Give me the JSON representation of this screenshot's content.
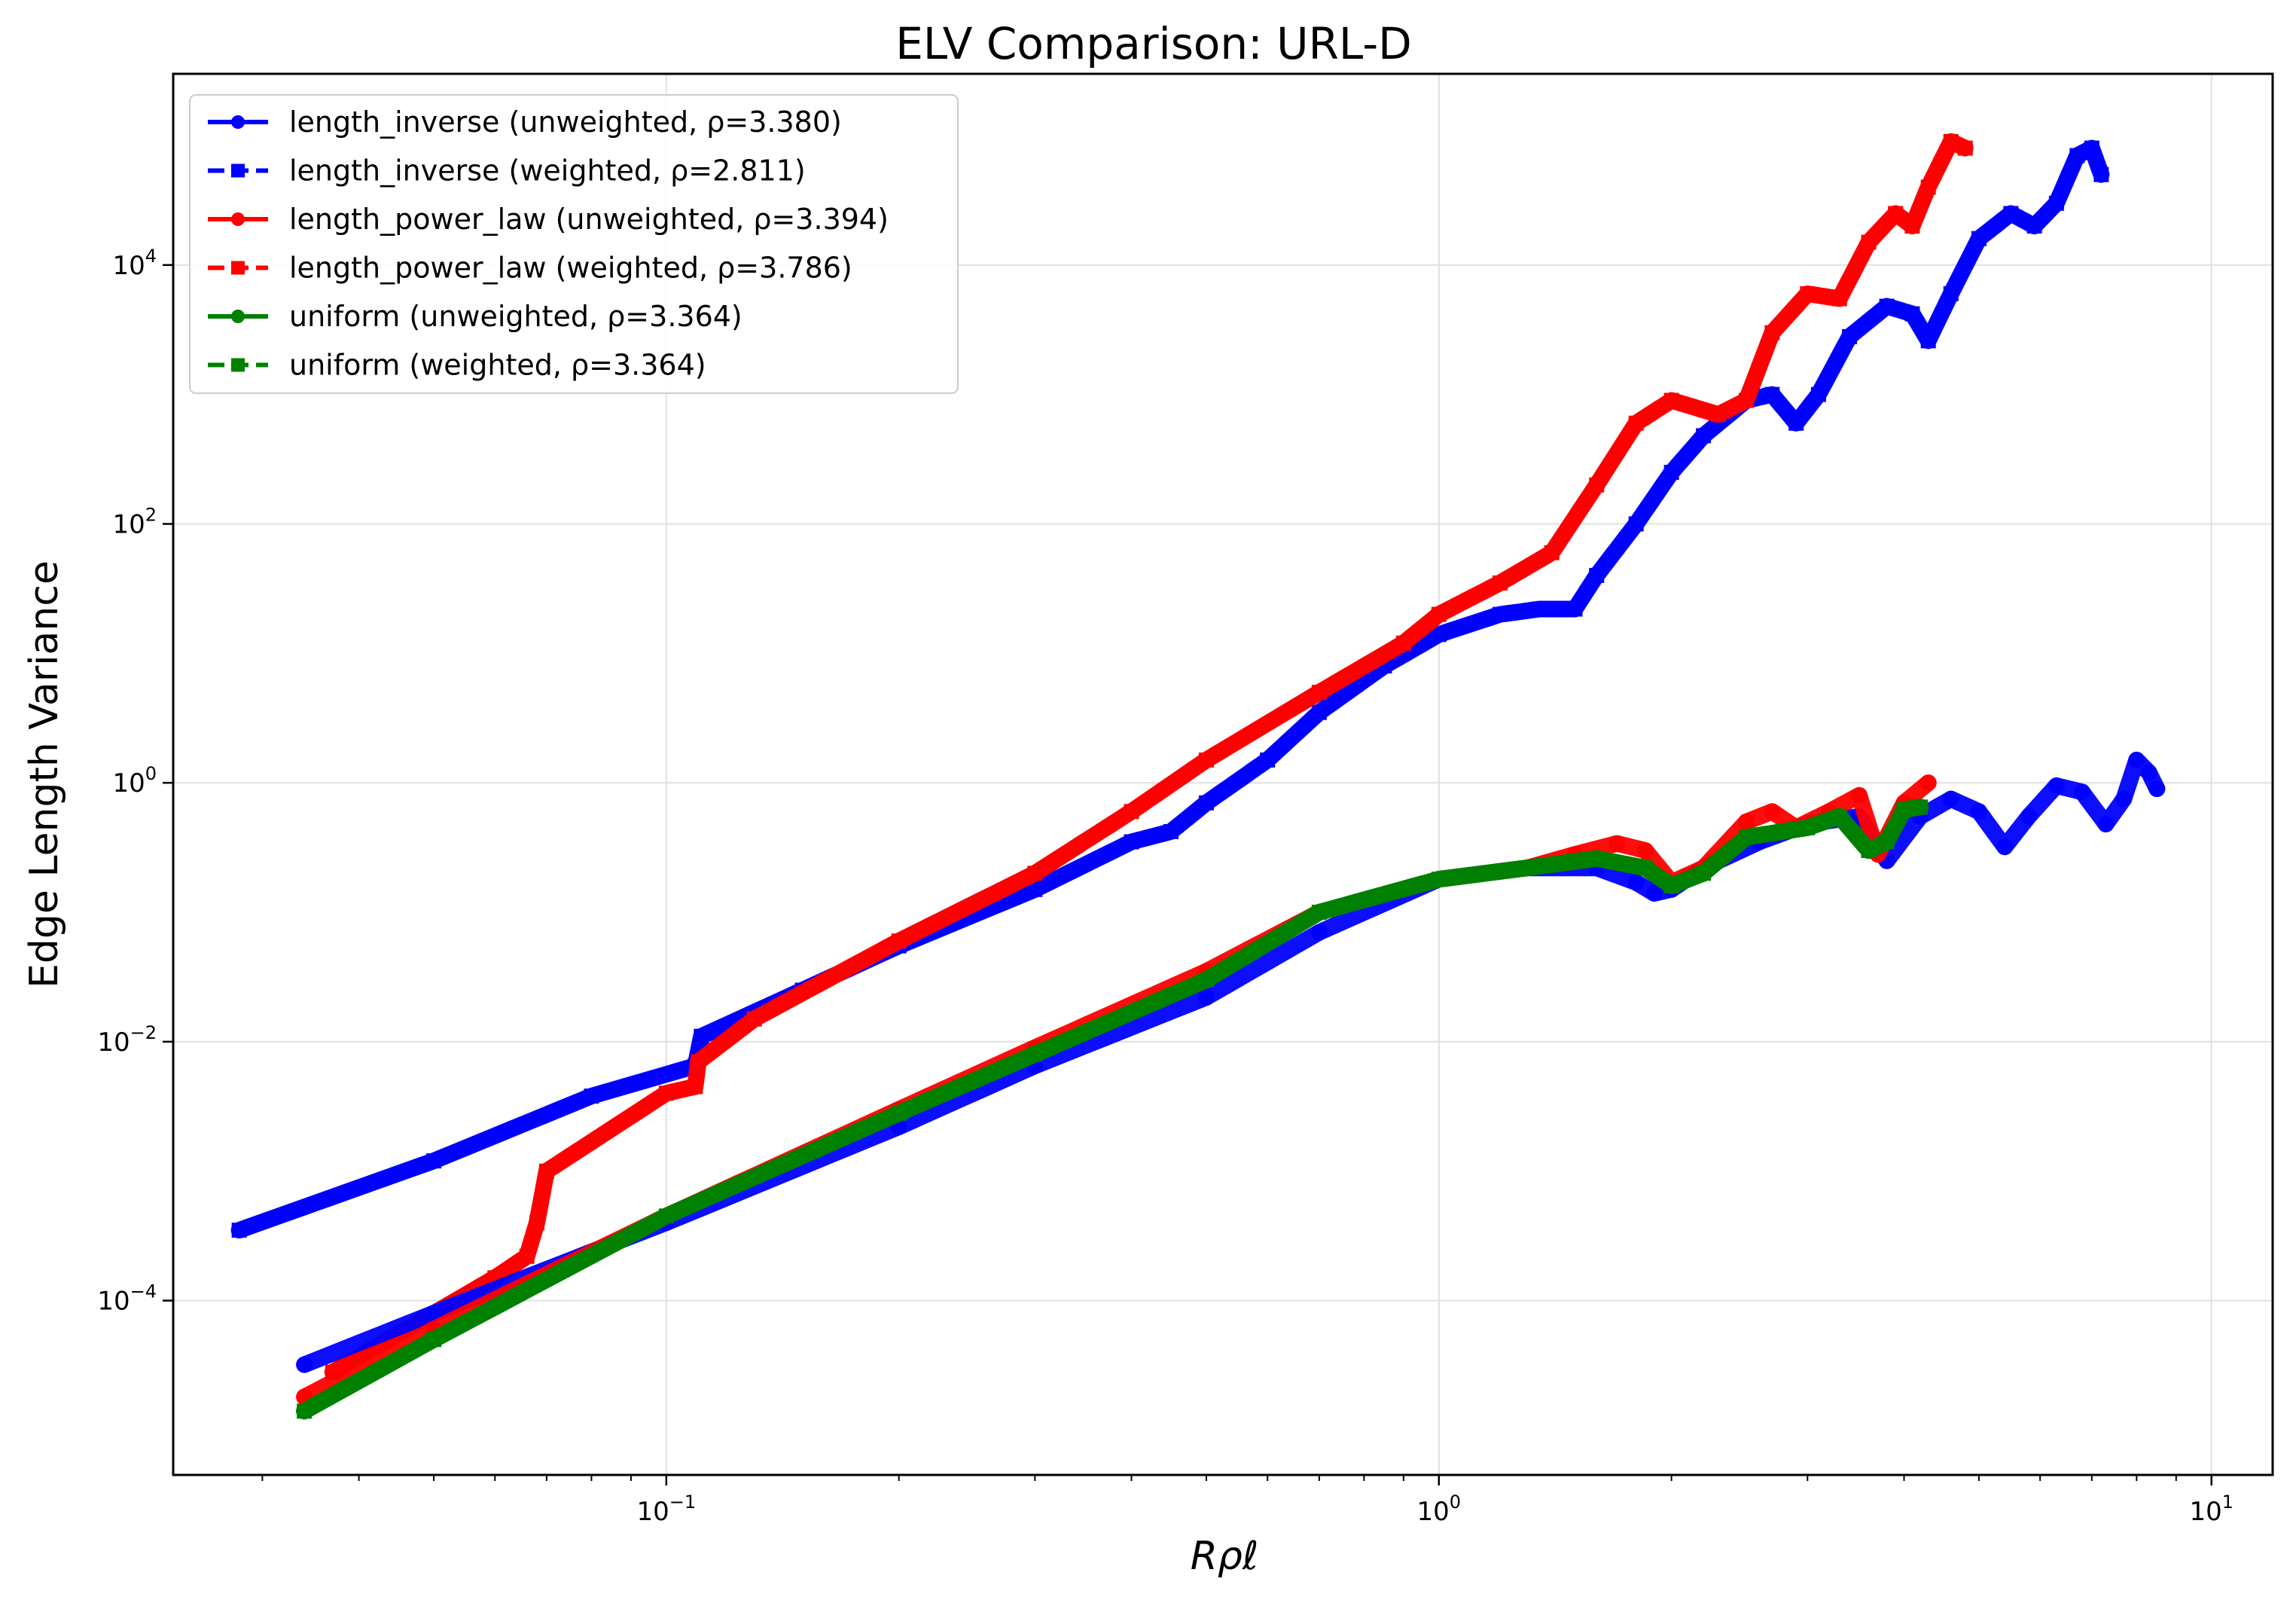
{
  "chart_data": {
    "type": "line",
    "title": "ELV Comparison: URL-D",
    "xlabel": "Rρℓ",
    "ylabel": "Edge Length Variance",
    "xscale": "log",
    "yscale": "log",
    "xlim": [
      0.023,
      12
    ],
    "ylim": [
      4.5e-06,
      300000.0
    ],
    "xticks": [
      {
        "value": 0.1,
        "base": "10",
        "exp": "−1"
      },
      {
        "value": 1,
        "base": "10",
        "exp": "0"
      },
      {
        "value": 10,
        "base": "10",
        "exp": "1"
      }
    ],
    "yticks": [
      {
        "value": 0.0001,
        "base": "10",
        "exp": "−4"
      },
      {
        "value": 0.01,
        "base": "10",
        "exp": "−2"
      },
      {
        "value": 1,
        "base": "10",
        "exp": "0"
      },
      {
        "value": 100,
        "base": "10",
        "exp": "2"
      },
      {
        "value": 10000,
        "base": "10",
        "exp": "4"
      }
    ],
    "grid": true,
    "legend_position": "upper-left",
    "series": [
      {
        "name": "length_inverse (unweighted, ρ=3.380)",
        "color": "#0000ff",
        "style": "solid",
        "marker": "circle",
        "points": [
          [
            0.034,
            3.2e-05
          ],
          [
            0.05,
            8e-05
          ],
          [
            0.1,
            0.0004
          ],
          [
            0.2,
            0.0022
          ],
          [
            0.3,
            0.0065
          ],
          [
            0.5,
            0.022
          ],
          [
            0.7,
            0.07
          ],
          [
            1.0,
            0.18
          ],
          [
            1.3,
            0.22
          ],
          [
            1.6,
            0.22
          ],
          [
            1.8,
            0.17
          ],
          [
            1.9,
            0.14
          ],
          [
            2.0,
            0.15
          ],
          [
            2.2,
            0.22
          ],
          [
            2.6,
            0.35
          ],
          [
            3.0,
            0.48
          ],
          [
            3.5,
            0.55
          ],
          [
            3.8,
            0.25
          ],
          [
            4.2,
            0.55
          ],
          [
            4.6,
            0.75
          ],
          [
            5.0,
            0.6
          ],
          [
            5.4,
            0.32
          ],
          [
            5.8,
            0.55
          ],
          [
            6.3,
            0.95
          ],
          [
            6.8,
            0.85
          ],
          [
            7.3,
            0.48
          ],
          [
            7.7,
            0.75
          ],
          [
            8.0,
            1.5
          ],
          [
            8.3,
            1.2
          ],
          [
            8.5,
            0.9
          ]
        ]
      },
      {
        "name": "length_inverse (weighted, ρ=2.811)",
        "color": "#0000ff",
        "style": "dashed",
        "marker": "square",
        "points": [
          [
            0.028,
            0.00035
          ],
          [
            0.05,
            0.0012
          ],
          [
            0.08,
            0.0038
          ],
          [
            0.109,
            0.0065
          ],
          [
            0.111,
            0.011
          ],
          [
            0.15,
            0.025
          ],
          [
            0.2,
            0.055
          ],
          [
            0.3,
            0.15
          ],
          [
            0.4,
            0.35
          ],
          [
            0.45,
            0.42
          ],
          [
            0.5,
            0.7
          ],
          [
            0.6,
            1.5
          ],
          [
            0.7,
            3.5
          ],
          [
            0.85,
            8
          ],
          [
            1.0,
            14
          ],
          [
            1.2,
            20
          ],
          [
            1.35,
            22
          ],
          [
            1.5,
            22
          ],
          [
            1.6,
            40
          ],
          [
            1.8,
            100
          ],
          [
            2.0,
            250
          ],
          [
            2.2,
            480
          ],
          [
            2.5,
            900
          ],
          [
            2.7,
            1000
          ],
          [
            2.9,
            600
          ],
          [
            3.1,
            1000
          ],
          [
            3.4,
            2800
          ],
          [
            3.8,
            4800
          ],
          [
            4.1,
            4200
          ],
          [
            4.3,
            2600
          ],
          [
            4.6,
            6000
          ],
          [
            5.0,
            16000
          ],
          [
            5.5,
            25000
          ],
          [
            5.9,
            20000
          ],
          [
            6.3,
            30000
          ],
          [
            6.7,
            70000
          ],
          [
            7.0,
            80000
          ],
          [
            7.2,
            50000
          ]
        ]
      },
      {
        "name": "length_power_law (unweighted, ρ=3.394)",
        "color": "#ff0000",
        "style": "solid",
        "marker": "circle",
        "points": [
          [
            0.034,
            1.8e-05
          ],
          [
            0.05,
            6e-05
          ],
          [
            0.1,
            0.00045
          ],
          [
            0.2,
            0.003
          ],
          [
            0.3,
            0.009
          ],
          [
            0.5,
            0.035
          ],
          [
            0.7,
            0.1
          ],
          [
            1.0,
            0.18
          ],
          [
            1.3,
            0.22
          ],
          [
            1.5,
            0.28
          ],
          [
            1.7,
            0.34
          ],
          [
            1.85,
            0.3
          ],
          [
            2.0,
            0.17
          ],
          [
            2.2,
            0.22
          ],
          [
            2.5,
            0.5
          ],
          [
            2.7,
            0.6
          ],
          [
            2.9,
            0.45
          ],
          [
            3.2,
            0.6
          ],
          [
            3.5,
            0.8
          ],
          [
            3.7,
            0.28
          ],
          [
            4.0,
            0.7
          ],
          [
            4.3,
            1.0
          ]
        ]
      },
      {
        "name": "length_power_law (weighted, ρ=3.786)",
        "color": "#ff0000",
        "style": "dashed",
        "marker": "square",
        "points": [
          [
            0.037,
            2.8e-05
          ],
          [
            0.06,
            0.00015
          ],
          [
            0.066,
            0.00022
          ],
          [
            0.068,
            0.0004
          ],
          [
            0.07,
            0.001
          ],
          [
            0.1,
            0.004
          ],
          [
            0.109,
            0.0045
          ],
          [
            0.11,
            0.007
          ],
          [
            0.13,
            0.015
          ],
          [
            0.2,
            0.06
          ],
          [
            0.3,
            0.2
          ],
          [
            0.4,
            0.6
          ],
          [
            0.5,
            1.5
          ],
          [
            0.7,
            5
          ],
          [
            0.9,
            12
          ],
          [
            1.0,
            20
          ],
          [
            1.2,
            35
          ],
          [
            1.4,
            60
          ],
          [
            1.6,
            200
          ],
          [
            1.8,
            600
          ],
          [
            2.0,
            900
          ],
          [
            2.3,
            700
          ],
          [
            2.5,
            900
          ],
          [
            2.7,
            3000
          ],
          [
            3.0,
            6000
          ],
          [
            3.3,
            5500
          ],
          [
            3.6,
            15000
          ],
          [
            3.9,
            25000
          ],
          [
            4.1,
            20000
          ],
          [
            4.3,
            40000
          ],
          [
            4.6,
            90000
          ],
          [
            4.8,
            80000
          ]
        ]
      },
      {
        "name": "uniform (unweighted, ρ=3.364)",
        "color": "#008000",
        "style": "solid",
        "marker": "circle",
        "points": [
          [
            0.034,
            1.4e-05
          ],
          [
            0.05,
            5e-05
          ],
          [
            0.1,
            0.00045
          ],
          [
            0.2,
            0.0028
          ],
          [
            0.3,
            0.008
          ],
          [
            0.5,
            0.03
          ],
          [
            0.7,
            0.1
          ],
          [
            1.0,
            0.18
          ],
          [
            1.3,
            0.22
          ],
          [
            1.6,
            0.26
          ],
          [
            1.85,
            0.22
          ],
          [
            2.0,
            0.16
          ],
          [
            2.2,
            0.2
          ],
          [
            2.5,
            0.38
          ],
          [
            3.0,
            0.45
          ],
          [
            3.3,
            0.55
          ],
          [
            3.6,
            0.3
          ],
          [
            3.8,
            0.35
          ],
          [
            4.0,
            0.62
          ],
          [
            4.2,
            0.65
          ]
        ]
      },
      {
        "name": "uniform (weighted, ρ=3.364)",
        "color": "#008000",
        "style": "dashed",
        "marker": "square",
        "points": [
          [
            0.034,
            1.4e-05
          ],
          [
            0.05,
            5e-05
          ],
          [
            0.1,
            0.00045
          ],
          [
            0.2,
            0.0028
          ],
          [
            0.3,
            0.008
          ],
          [
            0.5,
            0.03
          ],
          [
            0.7,
            0.1
          ],
          [
            1.0,
            0.18
          ],
          [
            1.3,
            0.22
          ],
          [
            1.6,
            0.26
          ],
          [
            1.85,
            0.22
          ],
          [
            2.0,
            0.16
          ],
          [
            2.2,
            0.2
          ],
          [
            2.5,
            0.38
          ],
          [
            3.0,
            0.45
          ],
          [
            3.3,
            0.55
          ],
          [
            3.6,
            0.3
          ],
          [
            3.8,
            0.35
          ],
          [
            4.0,
            0.62
          ],
          [
            4.2,
            0.65
          ]
        ]
      }
    ]
  }
}
